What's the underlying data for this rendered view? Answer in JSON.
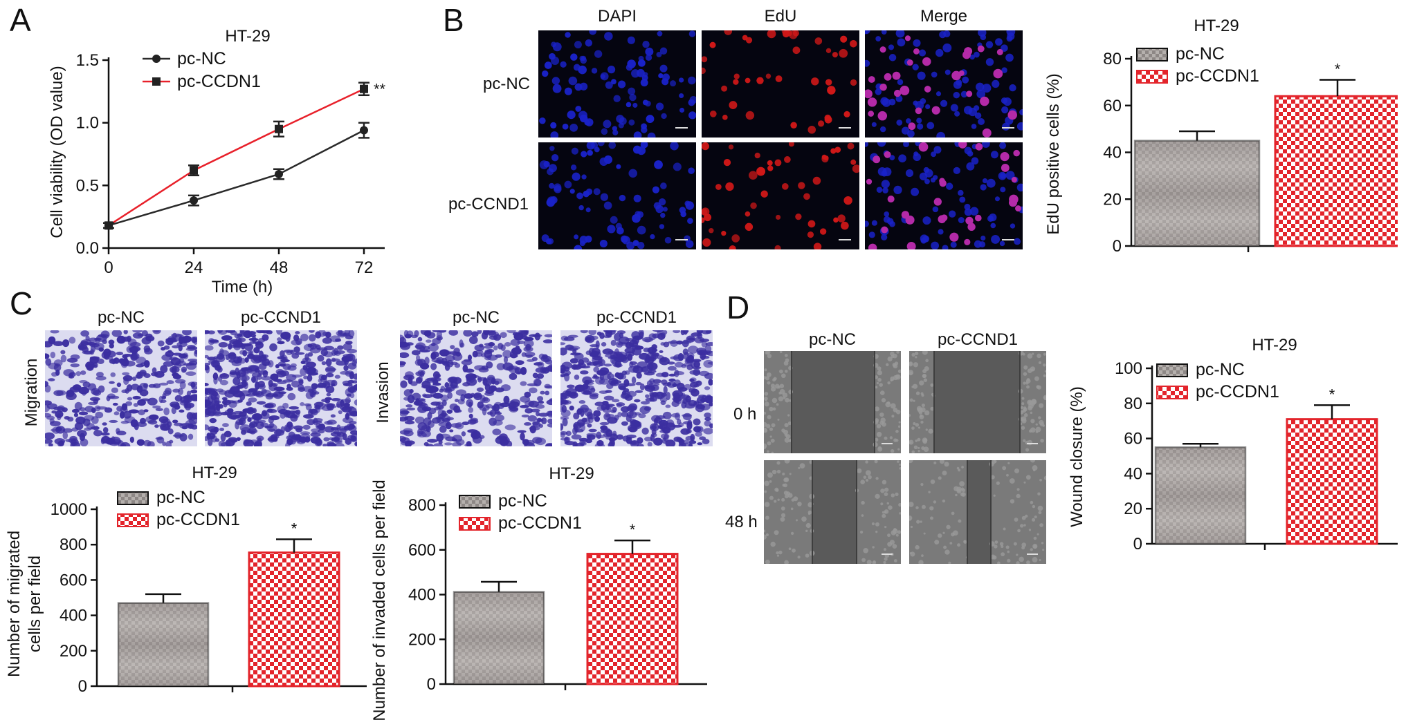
{
  "panel_labels": {
    "a": "A",
    "b": "B",
    "c": "C",
    "d": "D"
  },
  "panel_b": {
    "col_headers": [
      "DAPI",
      "EdU",
      "Merge"
    ],
    "row_labels": [
      "pc-NC",
      "pc-CCND1"
    ],
    "colors": {
      "dapi": "#1a22c8",
      "edu": "#d11818",
      "merge_nuclei": "#b42aa8",
      "background": "#050510"
    }
  },
  "panel_c": {
    "col_headers_left": [
      "pc-NC",
      "pc-CCND1"
    ],
    "col_headers_right": [
      "pc-NC",
      "pc-CCND1"
    ],
    "row_label_left": "Migration",
    "row_label_right": "Invasion",
    "colors": {
      "stain": "#3b2ea0",
      "membrane": "#dcdcf0"
    }
  },
  "panel_d": {
    "col_headers": [
      "pc-NC",
      "pc-CCND1"
    ],
    "row_labels": [
      "0 h",
      "48 h"
    ],
    "colors": {
      "image": "#5a5a5a"
    }
  },
  "chart_data": [
    {
      "id": "chartA",
      "type": "line",
      "title": "HT-29",
      "xlabel": "Time (h)",
      "ylabel": "Cell viability (OD value)",
      "x": [
        0,
        24,
        48,
        72
      ],
      "xticks": [
        "0",
        "24",
        "48",
        "72"
      ],
      "yticks": [
        "0.0",
        "0.5",
        "1.0",
        "1.5"
      ],
      "ylim": [
        0,
        1.5
      ],
      "series": [
        {
          "name": "pc-NC",
          "values": [
            0.18,
            0.38,
            0.59,
            0.94
          ],
          "err": [
            0.02,
            0.04,
            0.04,
            0.06
          ],
          "color": "#2a2a2a",
          "marker": "circle"
        },
        {
          "name": "pc-CCDN1",
          "values": [
            0.18,
            0.62,
            0.95,
            1.27
          ],
          "err": [
            0.02,
            0.04,
            0.06,
            0.05
          ],
          "color": "#e8202a",
          "marker": "square"
        }
      ],
      "annotation": "**",
      "legend": "top-left"
    },
    {
      "id": "chartB",
      "type": "bar",
      "title": "HT-29",
      "ylabel": "EdU positive cells (%)",
      "categories": [
        "pc-NC",
        "pc-CCDN1"
      ],
      "values": [
        45,
        64
      ],
      "err": [
        4,
        7
      ],
      "yticks": [
        "0",
        "20",
        "40",
        "60",
        "80"
      ],
      "ylim": [
        0,
        80
      ],
      "annotations": [
        "",
        "*"
      ],
      "legend": "top-left"
    },
    {
      "id": "chartC1",
      "type": "bar",
      "title": "HT-29",
      "ylabel": [
        "Number of migrated",
        "cells per field"
      ],
      "categories": [
        "pc-NC",
        "pc-CCDN1"
      ],
      "values": [
        470,
        755
      ],
      "err": [
        50,
        75
      ],
      "yticks": [
        "0",
        "200",
        "400",
        "600",
        "800",
        "1000"
      ],
      "ylim": [
        0,
        1000
      ],
      "annotations": [
        "",
        "*"
      ],
      "legend": "top-left"
    },
    {
      "id": "chartC2",
      "type": "bar",
      "title": "HT-29",
      "ylabel": "Number of invaded cells per field",
      "categories": [
        "pc-NC",
        "pc-CCDN1"
      ],
      "values": [
        412,
        582
      ],
      "err": [
        45,
        60
      ],
      "yticks": [
        "0",
        "200",
        "400",
        "600",
        "800"
      ],
      "ylim": [
        0,
        800
      ],
      "annotations": [
        "",
        "*"
      ],
      "legend": "top-left"
    },
    {
      "id": "chartD",
      "type": "bar",
      "title": "HT-29",
      "ylabel": "Wound closure (%)",
      "categories": [
        "pc-NC",
        "pc-CCDN1"
      ],
      "values": [
        55,
        71
      ],
      "err": [
        2,
        8
      ],
      "yticks": [
        "0",
        "20",
        "40",
        "60",
        "80",
        "100"
      ],
      "ylim": [
        0,
        100
      ],
      "annotations": [
        "",
        "*"
      ],
      "legend": "top-left"
    }
  ]
}
